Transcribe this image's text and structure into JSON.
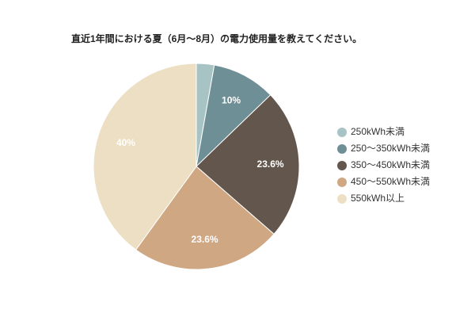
{
  "chart_data": {
    "type": "pie",
    "title": "直近1年間における夏（6月〜8月）の電力使用量を教えてください。",
    "categories": [
      "250kWh未満",
      "250〜350kWh未満",
      "350〜450kWh未満",
      "450〜550kWh未満",
      "550kWh以上"
    ],
    "values": [
      2.8,
      10,
      23.6,
      23.6,
      40
    ],
    "value_labels": [
      null,
      "10%",
      "23.6%",
      "23.6%",
      "40%"
    ],
    "colors": [
      "#a8c3c3",
      "#6e8f96",
      "#63574d",
      "#cfa783",
      "#ecdfc4"
    ],
    "legend": "right"
  }
}
